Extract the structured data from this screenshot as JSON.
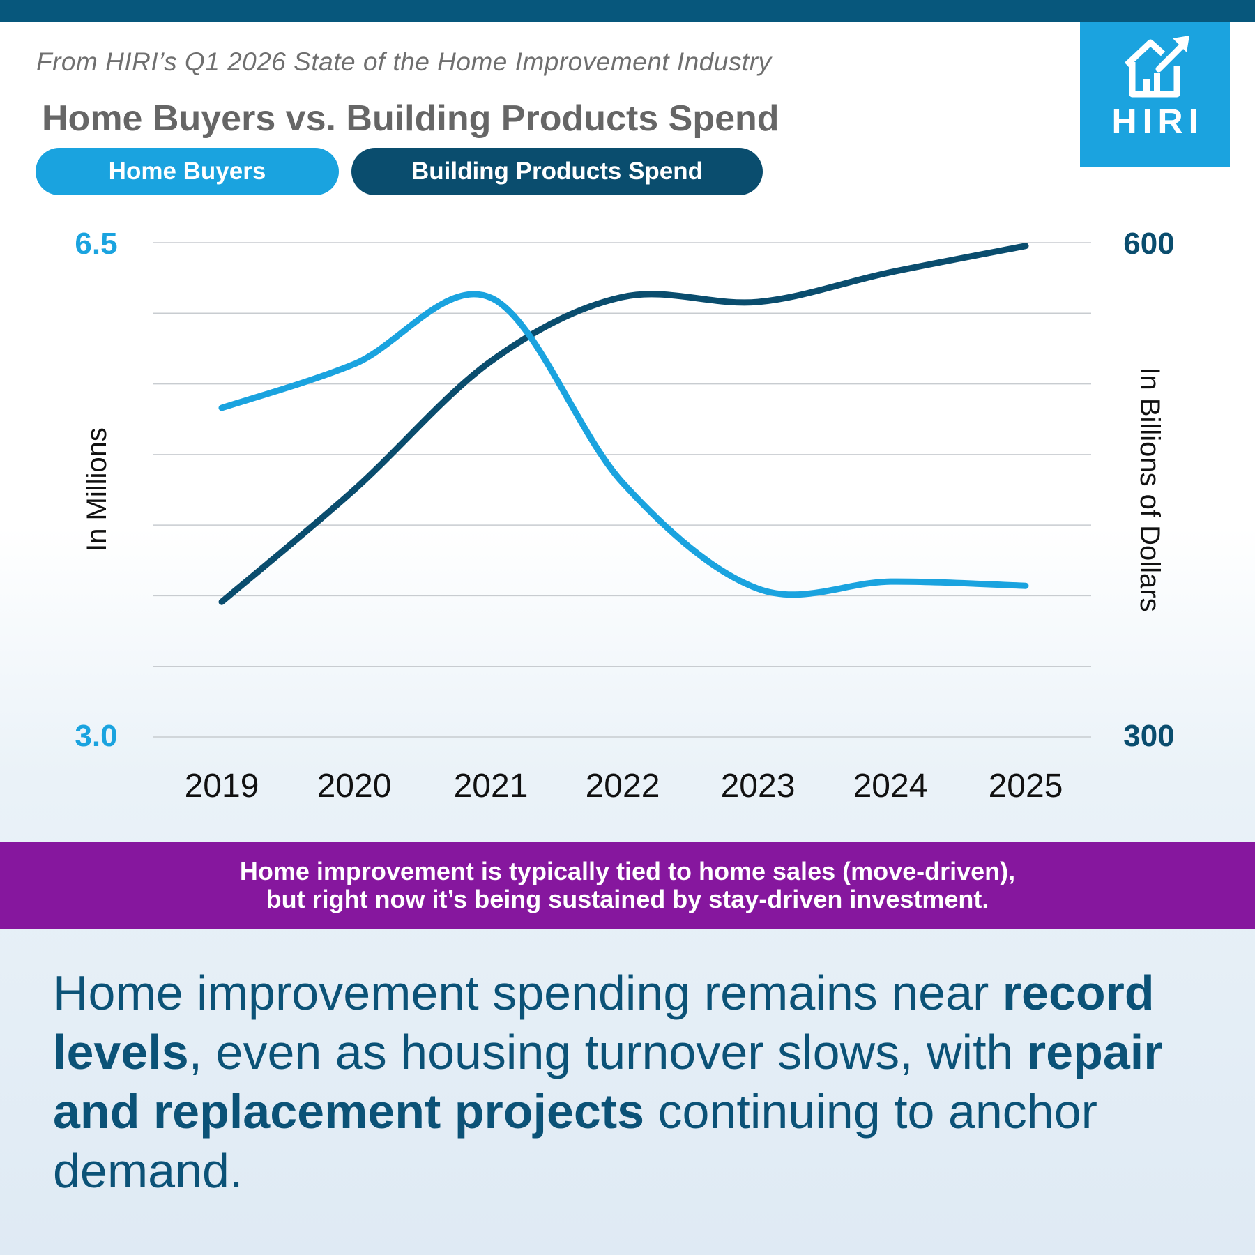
{
  "header": {
    "source": "From HIRI’s Q1 2026 State of the Home Improvement Industry",
    "title": "Home Buyers vs. Building Products Spend",
    "logo_text": "HIRI"
  },
  "legend": {
    "buyers_label": "Home Buyers",
    "spend_label": "Building Products Spend"
  },
  "colors": {
    "buyers": "#1aa3df",
    "spend": "#0a4d6e",
    "callout": "#86179e",
    "top_bar": "#07577c"
  },
  "chart_data": {
    "type": "line",
    "x": [
      "2019",
      "2020",
      "2021",
      "2022",
      "2023",
      "2024",
      "2025"
    ],
    "series": [
      {
        "name": "Home Buyers",
        "axis": "left",
        "values": [
          5.33,
          5.64,
          6.11,
          4.8,
          4.05,
          4.1,
          4.07
        ]
      },
      {
        "name": "Building Products Spend",
        "axis": "right",
        "values": [
          382,
          450,
          528,
          567,
          564,
          582,
          598
        ]
      }
    ],
    "y_left": {
      "label": "In Millions",
      "range": [
        3.0,
        6.5
      ],
      "tick_labels": [
        "6.5",
        "3.0"
      ]
    },
    "y_right": {
      "label": "In Billions of Dollars",
      "range": [
        300,
        600
      ],
      "tick_labels": [
        "600",
        "300"
      ]
    },
    "grid": true,
    "legend_position": "top-left"
  },
  "callout": {
    "line1": "Home improvement is typically tied to home sales (move-driven),",
    "line2": "but right now it’s being sustained by stay-driven investment."
  },
  "summary": {
    "part1": "Home improvement spending remains near ",
    "bold1": "record levels",
    "part2": ", even as housing turnover slows, with ",
    "bold2": "repair and replacement projects",
    "part3": " continuing to anchor demand."
  }
}
